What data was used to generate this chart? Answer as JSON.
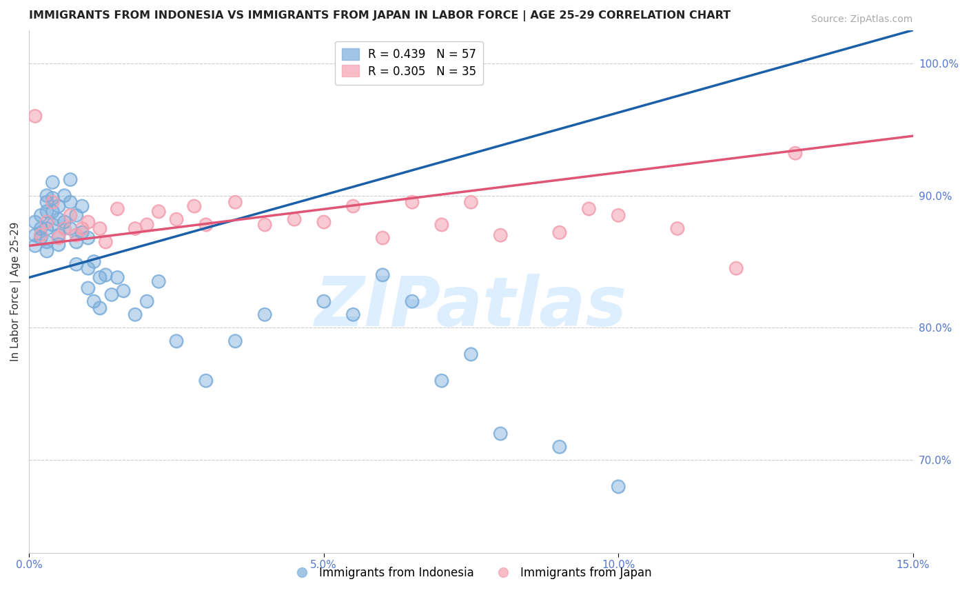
{
  "title": "IMMIGRANTS FROM INDONESIA VS IMMIGRANTS FROM JAPAN IN LABOR FORCE | AGE 25-29 CORRELATION CHART",
  "source": "Source: ZipAtlas.com",
  "ylabel": "In Labor Force | Age 25-29",
  "legend_labels": [
    "Immigrants from Indonesia",
    "Immigrants from Japan"
  ],
  "R_indonesia": 0.439,
  "N_indonesia": 57,
  "R_japan": 0.305,
  "N_japan": 35,
  "xlim": [
    0.0,
    0.15
  ],
  "ylim": [
    0.63,
    1.025
  ],
  "yticks": [
    0.7,
    0.8,
    0.9,
    1.0
  ],
  "xticks": [
    0.0,
    0.05,
    0.1,
    0.15
  ],
  "color_indonesia": "#7aaddb",
  "color_japan": "#f4a0b0",
  "color_trendline_indonesia": "#1a5fa8",
  "color_trendline_japan": "#e05575",
  "background_color": "#ffffff",
  "watermark_text": "ZIPatlas",
  "watermark_color": "#ddeeff",
  "title_fontsize": 11.5,
  "axis_label_fontsize": 11,
  "tick_fontsize": 11,
  "legend_fontsize": 12,
  "source_fontsize": 10,
  "trendline_indonesia_x0": 0.0,
  "trendline_indonesia_y0": 0.838,
  "trendline_indonesia_x1": 0.15,
  "trendline_indonesia_y1": 1.025,
  "trendline_japan_x0": 0.0,
  "trendline_japan_y0": 0.862,
  "trendline_japan_x1": 0.15,
  "trendline_japan_y1": 0.945,
  "indonesia_x": [
    0.001,
    0.001,
    0.001,
    0.002,
    0.002,
    0.002,
    0.003,
    0.003,
    0.003,
    0.003,
    0.003,
    0.003,
    0.004,
    0.004,
    0.004,
    0.004,
    0.005,
    0.005,
    0.005,
    0.005,
    0.006,
    0.006,
    0.007,
    0.007,
    0.007,
    0.008,
    0.008,
    0.008,
    0.009,
    0.009,
    0.01,
    0.01,
    0.01,
    0.011,
    0.011,
    0.012,
    0.012,
    0.013,
    0.014,
    0.015,
    0.016,
    0.018,
    0.02,
    0.022,
    0.025,
    0.03,
    0.035,
    0.04,
    0.05,
    0.055,
    0.06,
    0.065,
    0.07,
    0.075,
    0.08,
    0.09,
    0.1
  ],
  "indonesia_y": [
    0.862,
    0.88,
    0.87,
    0.875,
    0.868,
    0.885,
    0.895,
    0.9,
    0.888,
    0.875,
    0.865,
    0.858,
    0.91,
    0.898,
    0.888,
    0.878,
    0.892,
    0.882,
    0.87,
    0.863,
    0.9,
    0.88,
    0.912,
    0.895,
    0.875,
    0.885,
    0.865,
    0.848,
    0.892,
    0.872,
    0.868,
    0.845,
    0.83,
    0.85,
    0.82,
    0.838,
    0.815,
    0.84,
    0.825,
    0.838,
    0.828,
    0.81,
    0.82,
    0.835,
    0.79,
    0.76,
    0.79,
    0.81,
    0.82,
    0.81,
    0.84,
    0.82,
    0.76,
    0.78,
    0.72,
    0.71,
    0.68
  ],
  "japan_x": [
    0.001,
    0.002,
    0.003,
    0.004,
    0.005,
    0.006,
    0.007,
    0.008,
    0.009,
    0.01,
    0.012,
    0.013,
    0.015,
    0.018,
    0.02,
    0.022,
    0.025,
    0.028,
    0.03,
    0.035,
    0.04,
    0.045,
    0.05,
    0.055,
    0.06,
    0.065,
    0.07,
    0.075,
    0.08,
    0.09,
    0.095,
    0.1,
    0.11,
    0.12,
    0.13
  ],
  "japan_y": [
    0.96,
    0.87,
    0.88,
    0.895,
    0.868,
    0.875,
    0.885,
    0.87,
    0.875,
    0.88,
    0.875,
    0.865,
    0.89,
    0.875,
    0.878,
    0.888,
    0.882,
    0.892,
    0.878,
    0.895,
    0.878,
    0.882,
    0.88,
    0.892,
    0.868,
    0.895,
    0.878,
    0.895,
    0.87,
    0.872,
    0.89,
    0.885,
    0.875,
    0.845,
    0.932
  ]
}
